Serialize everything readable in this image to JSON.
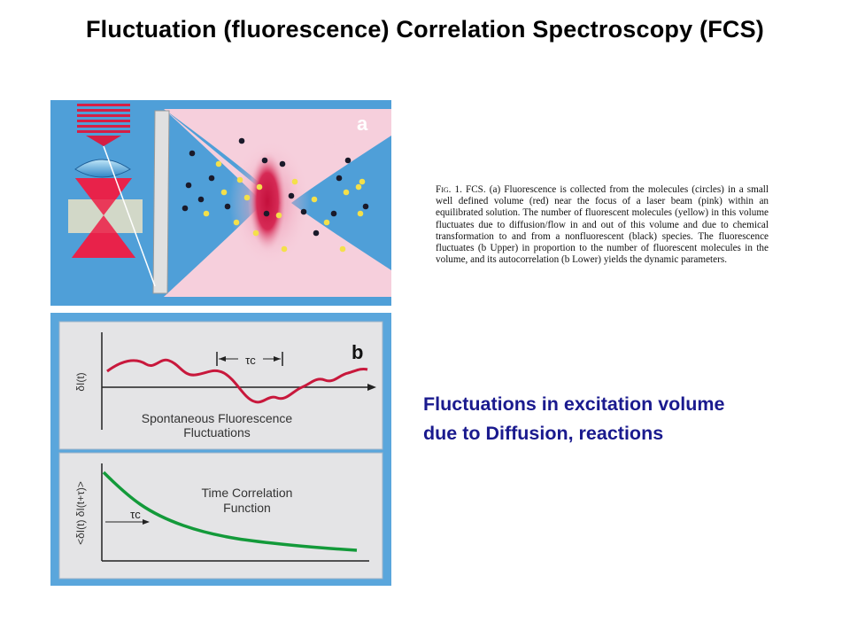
{
  "title": "Fluctuation (fluorescence) Correlation Spectroscopy (FCS)",
  "panel_a": {
    "label": "a"
  },
  "panel_b": {
    "label": "b",
    "upper": {
      "ylabel": "δI(t)",
      "tau_label": "τc",
      "caption_line1": "Spontaneous Fluorescence",
      "caption_line2": "Fluctuations"
    },
    "lower": {
      "ylabel": "<δI(t) δI(t+τ)>",
      "tau_label": "τc",
      "caption_line1": "Time Correlation",
      "caption_line2": "Function"
    }
  },
  "caption": {
    "fig_label": "Fig. 1.",
    "text": "FCS. (a) Fluorescence is collected from the molecules (circles) in a small well defined volume (red) near the focus of a laser beam (pink) within an equilibrated solution. The number of fluorescent molecules (yellow) in this volume fluctuates due to diffusion/flow in and out of this volume and due to chemical transformation to and from a nonfluorescent (black) species. The fluorescence fluctuates (b Upper) in proportion to the number of fluorescent molecules in the volume, and its autocorrelation (b Lower) yields the dynamic parameters."
  },
  "highlight": {
    "line1": "Fluctuations in excitation volume",
    "line2": "due to Diffusion, reactions"
  },
  "colors": {
    "panel_blue": "#4f9fd8",
    "beam_pink": "#f6cfdc",
    "focus_red": "#c4103c",
    "fluctuation_line": "#c8183c",
    "correlation_line": "#139a3a",
    "highlight_text": "#1a1a8e"
  }
}
